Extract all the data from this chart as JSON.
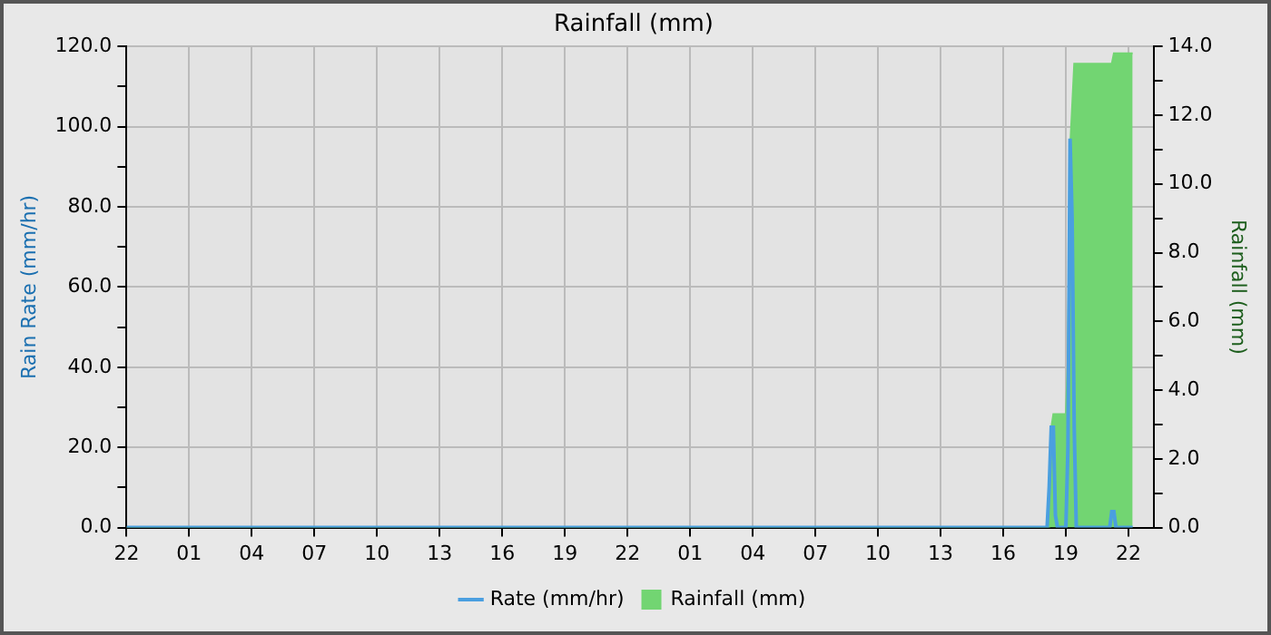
{
  "chart_data": {
    "type": "line",
    "title": "Rainfall (mm)",
    "ylabel": "Rain Rate (mm/hr)",
    "y2label": "Rainfall (mm)",
    "xlim": [
      "--01-01T22:00",
      "--01-03T23:12"
    ],
    "xticks": [
      {
        "value": "--01-01T22:00",
        "label": "22"
      },
      {
        "value": "--01-02T01:00",
        "label": "01"
      },
      {
        "value": "--01-02T04:00",
        "label": "04"
      },
      {
        "value": "--01-02T07:00",
        "label": "07"
      },
      {
        "value": "--01-02T10:00",
        "label": "10"
      },
      {
        "value": "--01-02T13:00",
        "label": "13"
      },
      {
        "value": "--01-02T16:00",
        "label": "16"
      },
      {
        "value": "--01-02T19:00",
        "label": "19"
      },
      {
        "value": "--01-02T22:00",
        "label": "22"
      },
      {
        "value": "--01-03T01:00",
        "label": "01"
      },
      {
        "value": "--01-03T04:00",
        "label": "04"
      },
      {
        "value": "--01-03T07:00",
        "label": "07"
      },
      {
        "value": "--01-03T10:00",
        "label": "10"
      },
      {
        "value": "--01-03T13:00",
        "label": "13"
      },
      {
        "value": "--01-03T16:00",
        "label": "16"
      },
      {
        "value": "--01-03T19:00",
        "label": "19"
      },
      {
        "value": "--01-03T22:00",
        "label": "22"
      }
    ],
    "ylim": [
      0,
      120
    ],
    "yticks": [
      {
        "value": 0,
        "label": "0.0"
      },
      {
        "value": 10,
        "label": null
      },
      {
        "value": 20,
        "label": "20.0"
      },
      {
        "value": 30,
        "label": null
      },
      {
        "value": 40,
        "label": "40.0"
      },
      {
        "value": 50,
        "label": null
      },
      {
        "value": 60,
        "label": "60.0"
      },
      {
        "value": 70,
        "label": null
      },
      {
        "value": 80,
        "label": "80.0"
      },
      {
        "value": 90,
        "label": null
      },
      {
        "value": 100,
        "label": "100.0"
      },
      {
        "value": 110,
        "label": null
      },
      {
        "value": 120,
        "label": "120.0"
      }
    ],
    "y2lim": [
      0,
      14
    ],
    "y2ticks": [
      {
        "value": 0,
        "label": "0.0"
      },
      {
        "value": 1,
        "label": null
      },
      {
        "value": 2,
        "label": "2.0"
      },
      {
        "value": 3,
        "label": null
      },
      {
        "value": 4,
        "label": "4.0"
      },
      {
        "value": 5,
        "label": null
      },
      {
        "value": 6,
        "label": "6.0"
      },
      {
        "value": 7,
        "label": null
      },
      {
        "value": 8,
        "label": "8.0"
      },
      {
        "value": 9,
        "label": null
      },
      {
        "value": 10,
        "label": "10.0"
      },
      {
        "value": 11,
        "label": null
      },
      {
        "value": 12,
        "label": "12.0"
      },
      {
        "value": 13,
        "label": null
      },
      {
        "value": 14,
        "label": "14.0"
      }
    ],
    "grid": true,
    "legend": "bottom",
    "series": [
      {
        "name": "Rate (mm/hr)",
        "color": "#4a9fe0",
        "x": [
          "--01-01T22:00",
          "--01-03T18:06",
          "--01-03T18:12",
          "--01-03T18:18",
          "--01-03T18:24",
          "--01-03T18:30",
          "--01-03T18:36",
          "--01-03T19:00",
          "--01-03T19:06",
          "--01-03T19:12",
          "--01-03T19:18",
          "--01-03T19:24",
          "--01-03T19:30",
          "--01-03T21:06",
          "--01-03T21:12",
          "--01-03T21:18",
          "--01-03T21:24",
          "--01-03T22:12"
        ],
        "values": [
          0,
          0,
          10,
          25,
          25,
          3,
          0,
          0,
          20,
          97,
          77,
          25,
          0,
          0,
          4,
          4,
          0,
          0
        ]
      },
      {
        "name": "Rainfall (mm)",
        "type": "area",
        "axis": "y2",
        "color": "#72d572",
        "x": [
          "--01-01T22:00",
          "--01-03T18:12",
          "--01-03T18:18",
          "--01-03T18:24",
          "--01-03T19:00",
          "--01-03T19:06",
          "--01-03T19:12",
          "--01-03T19:24",
          "--01-03T21:12",
          "--01-03T21:18",
          "--01-03T22:12"
        ],
        "values": [
          0,
          0,
          2.9,
          3.3,
          3.3,
          5,
          11,
          13.5,
          13.5,
          13.8,
          13.8
        ]
      }
    ]
  }
}
